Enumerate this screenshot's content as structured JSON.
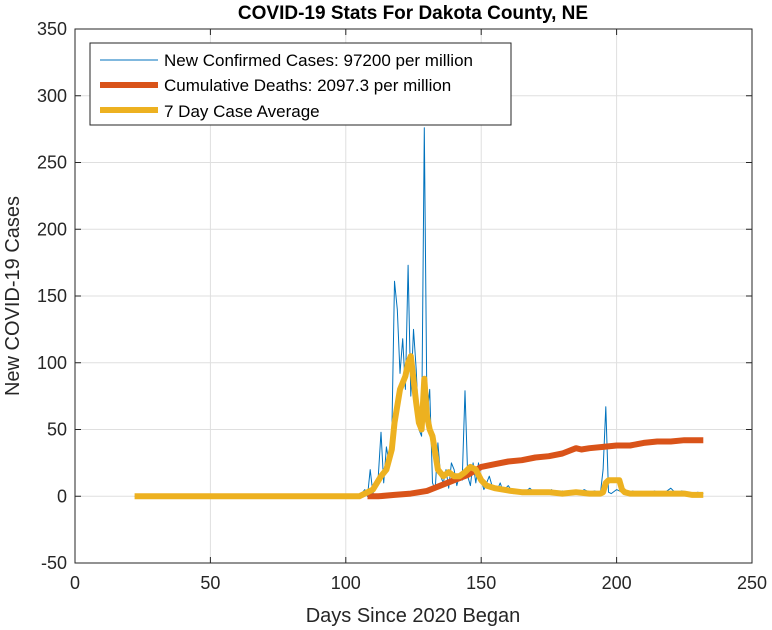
{
  "chart_data": {
    "type": "line",
    "title": "COVID-19 Stats For Dakota County, NE",
    "xlabel": "Days Since 2020 Began",
    "ylabel": "New COVID-19 Cases",
    "xlim": [
      0,
      250
    ],
    "ylim": [
      -50,
      350
    ],
    "xticks": [
      0,
      50,
      100,
      150,
      200,
      250
    ],
    "yticks": [
      -50,
      0,
      50,
      100,
      150,
      200,
      250,
      300,
      350
    ],
    "grid": true,
    "legend_position": "top-left",
    "series": [
      {
        "name": "New Confirmed Cases: 97200 per million",
        "color": "#0072BD",
        "line": "thin",
        "x": [
          22,
          105,
          107,
          108,
          109,
          110,
          111,
          112,
          113,
          114,
          115,
          116,
          117,
          118,
          119,
          120,
          121,
          122,
          123,
          124,
          125,
          126,
          127,
          128,
          129,
          130,
          131,
          132,
          133,
          134,
          135,
          136,
          137,
          138,
          139,
          140,
          141,
          142,
          143,
          144,
          145,
          146,
          147,
          148,
          149,
          150,
          151,
          152,
          153,
          154,
          155,
          156,
          157,
          158,
          159,
          160,
          162,
          164,
          166,
          168,
          170,
          172,
          174,
          176,
          178,
          180,
          182,
          184,
          186,
          188,
          190,
          192,
          194,
          195,
          196,
          197,
          198,
          200,
          202,
          204,
          206,
          208,
          210,
          212,
          214,
          216,
          218,
          220,
          222,
          224,
          226,
          228,
          230,
          232
        ],
        "y": [
          0,
          0,
          5,
          0,
          20,
          2,
          8,
          15,
          48,
          10,
          37,
          25,
          45,
          161,
          140,
          92,
          118,
          80,
          173,
          75,
          125,
          95,
          50,
          45,
          276,
          60,
          80,
          10,
          5,
          40,
          15,
          10,
          20,
          6,
          25,
          20,
          8,
          16,
          12,
          79,
          15,
          8,
          25,
          10,
          25,
          12,
          5,
          10,
          15,
          8,
          6,
          5,
          10,
          4,
          6,
          8,
          2,
          5,
          3,
          6,
          2,
          4,
          3,
          5,
          2,
          4,
          3,
          4,
          2,
          5,
          3,
          4,
          2,
          20,
          67,
          3,
          2,
          5,
          3,
          2,
          4,
          2,
          3,
          2,
          4,
          2,
          3,
          6,
          2,
          4,
          3,
          2,
          3,
          2
        ]
      },
      {
        "name": "Cumulative Deaths: 2097.3 per million",
        "color": "#D95319",
        "line": "thick",
        "x": [
          108,
          112,
          118,
          124,
          130,
          135,
          140,
          145,
          150,
          155,
          160,
          165,
          170,
          175,
          180,
          185,
          187,
          190,
          195,
          200,
          205,
          210,
          215,
          220,
          225,
          232
        ],
        "y": [
          0,
          0,
          1,
          2,
          4,
          8,
          12,
          16,
          22,
          24,
          26,
          27,
          29,
          30,
          32,
          36,
          35,
          36,
          37,
          38,
          38,
          40,
          41,
          41,
          42,
          42
        ]
      },
      {
        "name": "7 Day Case Average",
        "color": "#EDB120",
        "line": "thick",
        "x": [
          22,
          105,
          110,
          113,
          115,
          117,
          118,
          120,
          121,
          122,
          123,
          124,
          126,
          127,
          128,
          129,
          130,
          131,
          132,
          134,
          136,
          138,
          140,
          142,
          144,
          146,
          148,
          150,
          152,
          155,
          158,
          161,
          165,
          170,
          175,
          180,
          185,
          190,
          192,
          194,
          195,
          196,
          197,
          200,
          201,
          202,
          203,
          205,
          210,
          215,
          220,
          225,
          228,
          232
        ],
        "y": [
          0,
          0,
          5,
          15,
          20,
          35,
          55,
          80,
          85,
          90,
          100,
          105,
          70,
          55,
          50,
          88,
          60,
          50,
          45,
          20,
          15,
          18,
          15,
          15,
          18,
          22,
          20,
          12,
          8,
          6,
          5,
          4,
          3,
          3,
          3,
          2,
          3,
          2,
          2,
          2,
          3,
          10,
          12,
          12,
          12,
          5,
          3,
          2,
          2,
          2,
          2,
          2,
          1,
          1
        ]
      }
    ]
  }
}
